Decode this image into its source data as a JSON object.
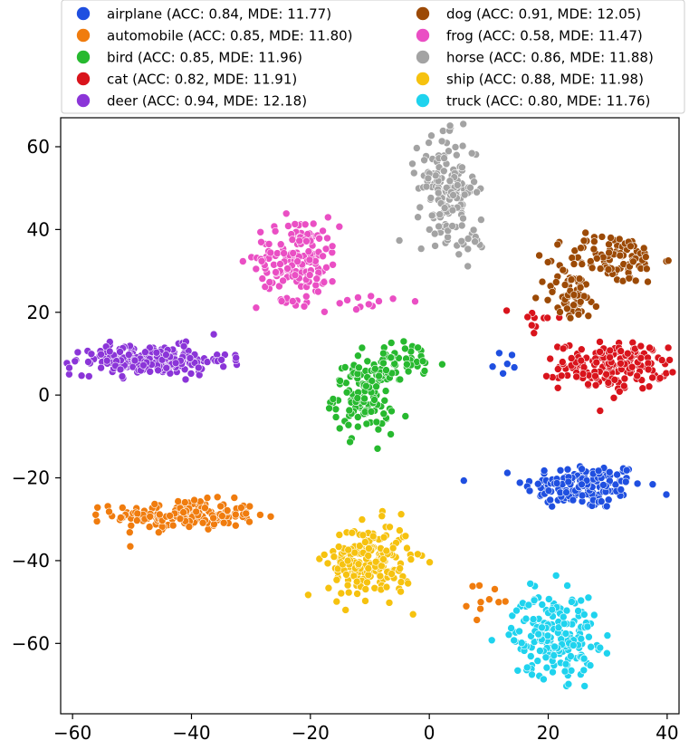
{
  "chart_data": {
    "type": "scatter",
    "title": "",
    "xlabel": "",
    "ylabel": "",
    "xlim": [
      -62,
      42
    ],
    "ylim": [
      -77,
      67
    ],
    "xticks": [
      -60,
      -40,
      -20,
      0,
      20,
      40
    ],
    "yticks": [
      60,
      40,
      20,
      0,
      -20,
      -40,
      -60
    ],
    "grid": false,
    "legend_position": "top, above plot, two columns",
    "series": [
      {
        "name": "airplane",
        "label": "airplane (ACC: 0.84, MDE: 11.77)",
        "color": "#1f4fe0",
        "clusters": [
          {
            "cx": 26,
            "cy": -22,
            "sx": 5,
            "sy": 2.8,
            "n": 150
          },
          {
            "cx": 13,
            "cy": 8,
            "sx": 1.5,
            "sy": 2.5,
            "n": 6
          }
        ]
      },
      {
        "name": "automobile",
        "label": "automobile (ACC: 0.85, MDE: 11.80)",
        "color": "#f07c0e",
        "clusters": [
          {
            "cx": -41,
            "cy": -29,
            "sx": 6,
            "sy": 1.8,
            "n": 170
          },
          {
            "cx": 10,
            "cy": -50,
            "sx": 1.8,
            "sy": 2.2,
            "n": 10
          }
        ]
      },
      {
        "name": "bird",
        "label": "bird (ACC: 0.85, MDE: 11.96)",
        "color": "#27b92f",
        "clusters": [
          {
            "cx": -11,
            "cy": 0,
            "sx": 2.5,
            "sy": 4.5,
            "n": 130
          },
          {
            "cx": -4,
            "cy": 8,
            "sx": 3.5,
            "sy": 2.5,
            "n": 40
          }
        ]
      },
      {
        "name": "cat",
        "label": "cat (ACC: 0.82, MDE: 11.91)",
        "color": "#d9141c",
        "clusters": [
          {
            "cx": 31,
            "cy": 7,
            "sx": 4.5,
            "sy": 2.8,
            "n": 180
          },
          {
            "cx": 19,
            "cy": 17,
            "sx": 2.5,
            "sy": 3,
            "n": 12
          }
        ]
      },
      {
        "name": "deer",
        "label": "deer (ACC: 0.94, MDE: 12.18)",
        "color": "#8b35d8",
        "clusters": [
          {
            "cx": -47,
            "cy": 8.5,
            "sx": 6.5,
            "sy": 1.8,
            "n": 220
          }
        ]
      },
      {
        "name": "dog",
        "label": "dog (ACC: 0.91, MDE: 12.05)",
        "color": "#9c4a06",
        "clusters": [
          {
            "cx": 31,
            "cy": 33,
            "sx": 4,
            "sy": 3,
            "n": 100
          },
          {
            "cx": 24,
            "cy": 24,
            "sx": 2.5,
            "sy": 3,
            "n": 60
          }
        ]
      },
      {
        "name": "frog",
        "label": "frog (ACC: 0.58, MDE: 11.47)",
        "color": "#ea4fc4",
        "clusters": [
          {
            "cx": -22,
            "cy": 33,
            "sx": 3.5,
            "sy": 5,
            "n": 160
          },
          {
            "cx": -12,
            "cy": 22,
            "sx": 3,
            "sy": 1.5,
            "n": 12
          }
        ]
      },
      {
        "name": "horse",
        "label": "horse (ACC: 0.86, MDE: 11.88)",
        "color": "#a3a3a3",
        "clusters": [
          {
            "cx": 3,
            "cy": 50,
            "sx": 2.5,
            "sy": 6,
            "n": 150
          },
          {
            "cx": 7,
            "cy": 37,
            "sx": 1.2,
            "sy": 2.5,
            "n": 15
          }
        ]
      },
      {
        "name": "ship",
        "label": "ship (ACC: 0.88, MDE: 11.98)",
        "color": "#f6c20f",
        "clusters": [
          {
            "cx": -10,
            "cy": -40,
            "sx": 3.5,
            "sy": 4.5,
            "n": 200
          }
        ]
      },
      {
        "name": "truck",
        "label": "truck (ACC: 0.80, MDE: 11.76)",
        "color": "#1fd3ee",
        "clusters": [
          {
            "cx": 21,
            "cy": -58,
            "sx": 3.5,
            "sy": 5,
            "n": 200
          }
        ]
      }
    ]
  }
}
